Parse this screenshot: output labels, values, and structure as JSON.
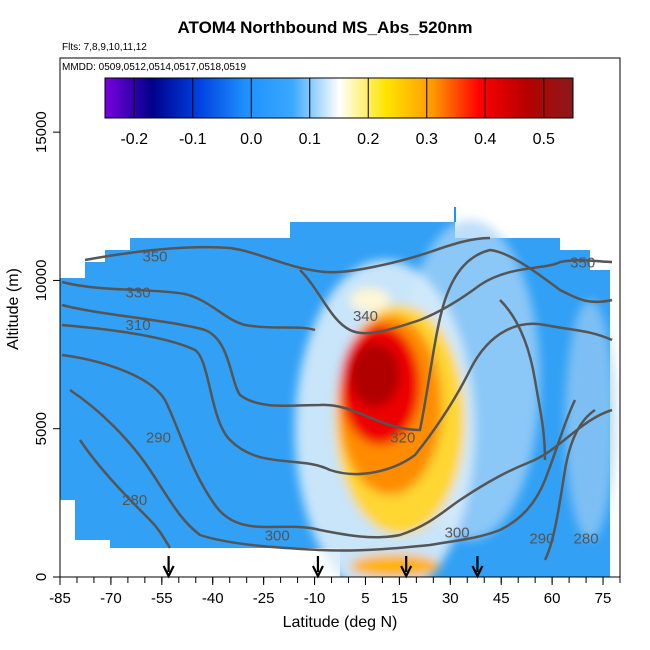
{
  "chart_data": {
    "type": "heatmap",
    "title": "ATOM4 Northbound MS_Abs_520nm",
    "flights_note": "Flts: 7,8,9,10,11,12",
    "dates_note": "MMDD: 0509,0512,0514,0517,0518,0519",
    "xlabel": "Latitude (deg N)",
    "ylabel": "Altitude (m)",
    "xlim": [
      -85,
      80
    ],
    "ylim": [
      0,
      17500
    ],
    "x_ticks": [
      "-85",
      "-70",
      "-55",
      "-40",
      "-25",
      "-10",
      "5",
      "15",
      "30",
      "45",
      "60",
      "75"
    ],
    "y_ticks": [
      "0",
      "5000",
      "10000",
      "15000"
    ],
    "colorbar": {
      "range": [
        -0.25,
        0.55
      ],
      "ticks": [
        "-0.2",
        "-0.1",
        "0.0",
        "0.1",
        "0.2",
        "0.3",
        "0.4",
        "0.5"
      ],
      "colors": [
        "#7a00e0",
        "#00008b",
        "#0040e0",
        "#1e90ff",
        "#3aa8ff",
        "#ffffff",
        "#ffe400",
        "#ff9900",
        "#ff0000",
        "#b80000",
        "#8b1a1a"
      ]
    },
    "contour_labels": [
      {
        "text": "350",
        "lat": -57,
        "alt": 10800
      },
      {
        "text": "330",
        "lat": -62,
        "alt": 9600
      },
      {
        "text": "310",
        "lat": -62,
        "alt": 8500
      },
      {
        "text": "290",
        "lat": -56,
        "alt": 4700
      },
      {
        "text": "280",
        "lat": -63,
        "alt": 2600
      },
      {
        "text": "300",
        "lat": -21,
        "alt": 1400
      },
      {
        "text": "340",
        "lat": 5,
        "alt": 8800
      },
      {
        "text": "320",
        "lat": 16,
        "alt": 4700
      },
      {
        "text": "300",
        "lat": 32,
        "alt": 1500
      },
      {
        "text": "290",
        "lat": 57,
        "alt": 1300
      },
      {
        "text": "280",
        "lat": 70,
        "alt": 1300
      },
      {
        "text": "350",
        "lat": 69,
        "alt": 10600
      }
    ],
    "arrows_lat": [
      -53,
      -9,
      17,
      38
    ]
  }
}
